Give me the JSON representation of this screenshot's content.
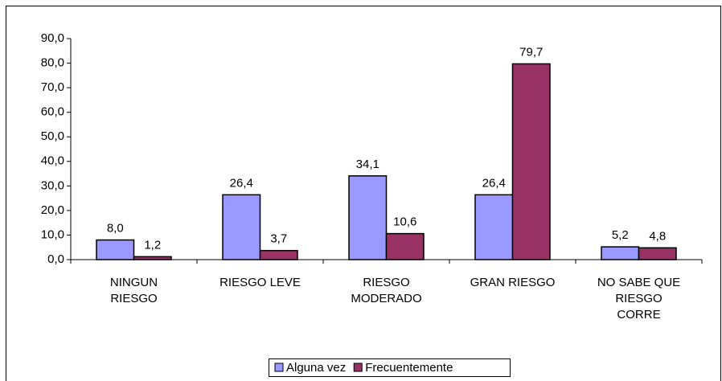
{
  "chart_data": {
    "type": "bar",
    "categories": [
      "NINGUN RIESGO",
      "RIESGO LEVE",
      "RIESGO MODERADO",
      "GRAN RIESGO",
      "NO SABE QUE RIESGO CORRE"
    ],
    "series": [
      {
        "name": "Alguna vez",
        "color": "#9999ff",
        "values": [
          8.0,
          26.4,
          34.1,
          26.4,
          5.2
        ],
        "value_labels": [
          "8,0",
          "26,4",
          "34,1",
          "26,4",
          "5,2"
        ]
      },
      {
        "name": "Frecuentemente",
        "color": "#993366",
        "values": [
          1.2,
          3.7,
          10.6,
          79.7,
          4.8
        ],
        "value_labels": [
          "1,2",
          "3,7",
          "10,6",
          "79,7",
          "4,8"
        ]
      }
    ],
    "ylim": [
      0,
      90
    ],
    "yticks": [
      {
        "value": 0,
        "label": "0,0"
      },
      {
        "value": 10,
        "label": "10,0"
      },
      {
        "value": 20,
        "label": "20,0"
      },
      {
        "value": 30,
        "label": "30,0"
      },
      {
        "value": 40,
        "label": "40,0"
      },
      {
        "value": 50,
        "label": "50,0"
      },
      {
        "value": 60,
        "label": "60,0"
      },
      {
        "value": 70,
        "label": "70,0"
      },
      {
        "value": 80,
        "label": "80,0"
      },
      {
        "value": 90,
        "label": "90,0"
      }
    ],
    "legend": "bottom"
  }
}
